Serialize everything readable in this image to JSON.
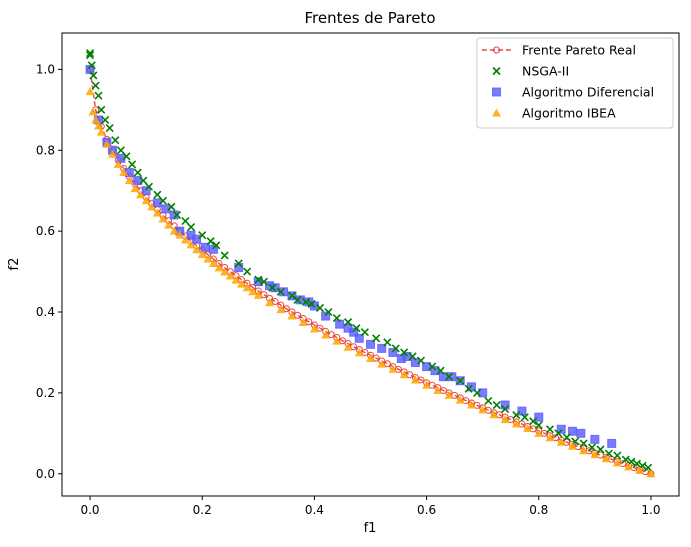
{
  "chart_data": {
    "type": "scatter",
    "title": "Frentes de Pareto",
    "xlabel": "f1",
    "ylabel": "f2",
    "xlim": [
      -0.05,
      1.05
    ],
    "ylim": [
      -0.055,
      1.09
    ],
    "xticks": [
      0.0,
      0.2,
      0.4,
      0.6,
      0.8,
      1.0
    ],
    "xtick_labels": [
      "0.0",
      "0.2",
      "0.4",
      "0.6",
      "0.8",
      "1.0"
    ],
    "yticks": [
      0.0,
      0.2,
      0.4,
      0.6,
      0.8,
      1.0
    ],
    "ytick_labels": [
      "0.0",
      "0.2",
      "0.4",
      "0.6",
      "0.8",
      "1.0"
    ],
    "grid": false,
    "legend_position": "top-right",
    "series": [
      {
        "name": "Frente Pareto Real",
        "kind": "line-circle",
        "color": "#e8483c",
        "x": [
          0.0,
          0.01,
          0.02,
          0.03,
          0.04,
          0.05,
          0.06,
          0.07,
          0.08,
          0.09,
          0.1,
          0.11,
          0.12,
          0.13,
          0.14,
          0.15,
          0.16,
          0.17,
          0.18,
          0.19,
          0.2,
          0.21,
          0.22,
          0.23,
          0.24,
          0.25,
          0.26,
          0.27,
          0.28,
          0.29,
          0.3,
          0.31,
          0.32,
          0.33,
          0.34,
          0.35,
          0.36,
          0.37,
          0.38,
          0.39,
          0.4,
          0.41,
          0.42,
          0.43,
          0.44,
          0.45,
          0.46,
          0.47,
          0.48,
          0.49,
          0.5,
          0.51,
          0.52,
          0.53,
          0.54,
          0.55,
          0.56,
          0.57,
          0.58,
          0.59,
          0.6,
          0.61,
          0.62,
          0.63,
          0.64,
          0.65,
          0.66,
          0.67,
          0.68,
          0.69,
          0.7,
          0.71,
          0.72,
          0.73,
          0.74,
          0.75,
          0.76,
          0.77,
          0.78,
          0.79,
          0.8,
          0.81,
          0.82,
          0.83,
          0.84,
          0.85,
          0.86,
          0.87,
          0.88,
          0.89,
          0.9,
          0.91,
          0.92,
          0.93,
          0.94,
          0.95,
          0.96,
          0.97,
          0.98,
          0.99,
          1.0
        ],
        "y": [
          1.0,
          0.9,
          0.859,
          0.827,
          0.8,
          0.776,
          0.755,
          0.735,
          0.717,
          0.7,
          0.684,
          0.668,
          0.654,
          0.639,
          0.626,
          0.613,
          0.6,
          0.588,
          0.576,
          0.564,
          0.553,
          0.542,
          0.531,
          0.52,
          0.51,
          0.5,
          0.49,
          0.48,
          0.471,
          0.461,
          0.452,
          0.443,
          0.434,
          0.426,
          0.417,
          0.408,
          0.4,
          0.392,
          0.384,
          0.376,
          0.368,
          0.36,
          0.352,
          0.344,
          0.337,
          0.329,
          0.322,
          0.314,
          0.307,
          0.3,
          0.293,
          0.286,
          0.279,
          0.272,
          0.265,
          0.258,
          0.252,
          0.245,
          0.238,
          0.232,
          0.225,
          0.219,
          0.213,
          0.206,
          0.2,
          0.194,
          0.188,
          0.181,
          0.175,
          0.169,
          0.163,
          0.157,
          0.151,
          0.146,
          0.14,
          0.134,
          0.128,
          0.123,
          0.117,
          0.111,
          0.106,
          0.1,
          0.094,
          0.089,
          0.083,
          0.078,
          0.073,
          0.067,
          0.062,
          0.057,
          0.051,
          0.046,
          0.041,
          0.036,
          0.03,
          0.025,
          0.02,
          0.015,
          0.01,
          0.005,
          0.0
        ]
      },
      {
        "name": "NSGA-II",
        "kind": "x",
        "color": "#008000",
        "x": [
          0.0,
          0.0,
          0.003,
          0.006,
          0.01,
          0.015,
          0.02,
          0.027,
          0.035,
          0.045,
          0.055,
          0.065,
          0.075,
          0.085,
          0.095,
          0.105,
          0.12,
          0.13,
          0.145,
          0.155,
          0.17,
          0.18,
          0.2,
          0.215,
          0.225,
          0.24,
          0.265,
          0.28,
          0.3,
          0.31,
          0.325,
          0.34,
          0.36,
          0.37,
          0.385,
          0.395,
          0.41,
          0.425,
          0.44,
          0.46,
          0.475,
          0.49,
          0.51,
          0.53,
          0.545,
          0.56,
          0.575,
          0.59,
          0.61,
          0.625,
          0.64,
          0.66,
          0.675,
          0.69,
          0.71,
          0.725,
          0.74,
          0.76,
          0.775,
          0.79,
          0.8,
          0.82,
          0.835,
          0.85,
          0.865,
          0.88,
          0.895,
          0.91,
          0.925,
          0.94,
          0.955,
          0.965,
          0.975,
          0.985,
          0.995
        ],
        "y": [
          1.04,
          1.035,
          1.01,
          0.985,
          0.96,
          0.935,
          0.9,
          0.875,
          0.855,
          0.825,
          0.8,
          0.785,
          0.765,
          0.745,
          0.725,
          0.71,
          0.69,
          0.675,
          0.66,
          0.64,
          0.625,
          0.61,
          0.59,
          0.575,
          0.565,
          0.54,
          0.52,
          0.5,
          0.48,
          0.475,
          0.46,
          0.45,
          0.44,
          0.43,
          0.425,
          0.42,
          0.41,
          0.4,
          0.385,
          0.375,
          0.36,
          0.35,
          0.335,
          0.325,
          0.31,
          0.3,
          0.29,
          0.28,
          0.265,
          0.255,
          0.24,
          0.23,
          0.21,
          0.2,
          0.18,
          0.17,
          0.16,
          0.145,
          0.14,
          0.13,
          0.12,
          0.11,
          0.1,
          0.09,
          0.08,
          0.075,
          0.065,
          0.06,
          0.05,
          0.045,
          0.035,
          0.03,
          0.025,
          0.02,
          0.015
        ]
      },
      {
        "name": "Algoritmo Diferencial",
        "kind": "square",
        "color": "#5a5aff",
        "x": [
          0.0,
          0.015,
          0.03,
          0.04,
          0.055,
          0.07,
          0.085,
          0.1,
          0.12,
          0.135,
          0.15,
          0.16,
          0.18,
          0.19,
          0.205,
          0.22,
          0.265,
          0.3,
          0.32,
          0.33,
          0.345,
          0.36,
          0.375,
          0.39,
          0.4,
          0.42,
          0.445,
          0.46,
          0.47,
          0.48,
          0.5,
          0.52,
          0.54,
          0.555,
          0.565,
          0.58,
          0.6,
          0.615,
          0.63,
          0.645,
          0.66,
          0.68,
          0.7,
          0.74,
          0.77,
          0.8,
          0.84,
          0.86,
          0.875,
          0.9,
          0.93
        ],
        "y": [
          1.0,
          0.875,
          0.82,
          0.8,
          0.78,
          0.745,
          0.725,
          0.7,
          0.67,
          0.655,
          0.64,
          0.6,
          0.59,
          0.58,
          0.56,
          0.555,
          0.51,
          0.475,
          0.465,
          0.46,
          0.45,
          0.44,
          0.43,
          0.425,
          0.415,
          0.39,
          0.37,
          0.36,
          0.35,
          0.335,
          0.32,
          0.31,
          0.3,
          0.285,
          0.29,
          0.275,
          0.265,
          0.255,
          0.24,
          0.24,
          0.23,
          0.215,
          0.2,
          0.17,
          0.155,
          0.14,
          0.11,
          0.105,
          0.1,
          0.085,
          0.075
        ]
      },
      {
        "name": "Algoritmo IBEA",
        "kind": "triangle",
        "color": "#ffa500",
        "x": [
          0.0,
          0.005,
          0.01,
          0.015,
          0.02,
          0.03,
          0.04,
          0.05,
          0.06,
          0.07,
          0.08,
          0.09,
          0.1,
          0.11,
          0.12,
          0.13,
          0.14,
          0.15,
          0.16,
          0.17,
          0.18,
          0.19,
          0.2,
          0.21,
          0.22,
          0.23,
          0.24,
          0.25,
          0.26,
          0.27,
          0.28,
          0.29,
          0.3,
          0.32,
          0.34,
          0.36,
          0.38,
          0.4,
          0.42,
          0.44,
          0.46,
          0.48,
          0.5,
          0.52,
          0.54,
          0.56,
          0.58,
          0.6,
          0.62,
          0.64,
          0.66,
          0.68,
          0.7,
          0.72,
          0.74,
          0.76,
          0.78,
          0.8,
          0.82,
          0.84,
          0.86,
          0.88,
          0.9,
          0.92,
          0.94,
          0.96,
          0.98,
          1.0
        ],
        "y": [
          0.945,
          0.895,
          0.875,
          0.86,
          0.845,
          0.815,
          0.79,
          0.765,
          0.745,
          0.725,
          0.705,
          0.69,
          0.675,
          0.66,
          0.645,
          0.63,
          0.615,
          0.6,
          0.59,
          0.578,
          0.566,
          0.554,
          0.542,
          0.531,
          0.52,
          0.509,
          0.499,
          0.489,
          0.479,
          0.469,
          0.46,
          0.45,
          0.441,
          0.423,
          0.406,
          0.39,
          0.374,
          0.358,
          0.343,
          0.328,
          0.313,
          0.299,
          0.285,
          0.271,
          0.258,
          0.245,
          0.232,
          0.219,
          0.206,
          0.194,
          0.182,
          0.17,
          0.158,
          0.146,
          0.134,
          0.123,
          0.112,
          0.1,
          0.089,
          0.078,
          0.068,
          0.057,
          0.047,
          0.037,
          0.027,
          0.017,
          0.008,
          0.0
        ]
      }
    ]
  }
}
